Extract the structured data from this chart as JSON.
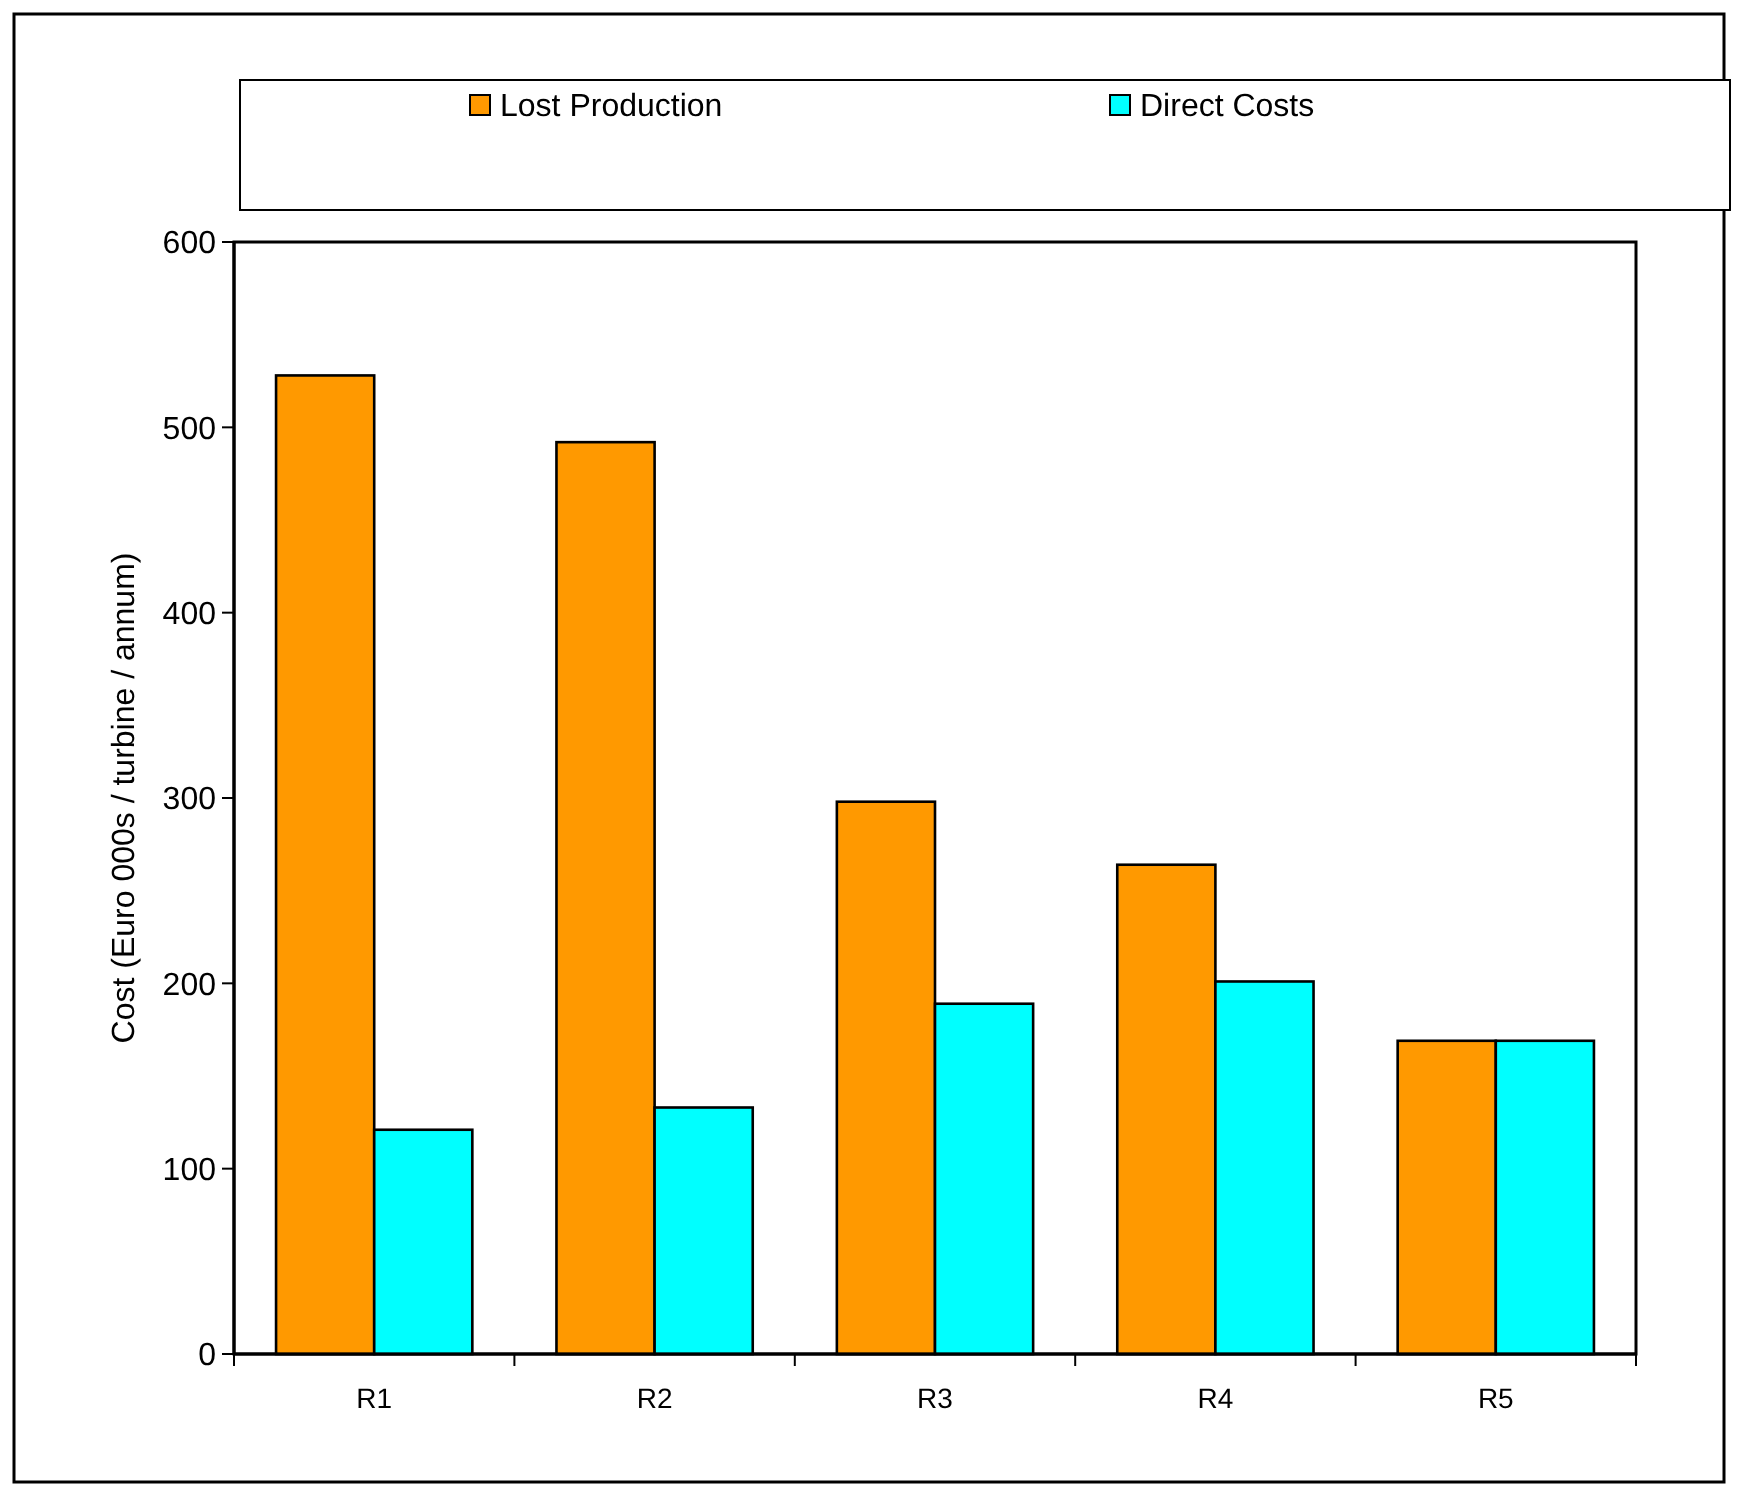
{
  "chart_data": {
    "type": "bar",
    "ylabel": "Cost (Euro 000s / turbine / annum)",
    "categories": [
      "R1",
      "R2",
      "R3",
      "R4",
      "R5"
    ],
    "series": [
      {
        "name": "Lost Production",
        "color": "#ff9900",
        "values": [
          528,
          492,
          298,
          264,
          169
        ]
      },
      {
        "name": "Direct Costs",
        "color": "#00ffff",
        "values": [
          121,
          133,
          189,
          201,
          169
        ]
      }
    ],
    "ylim": [
      0,
      600
    ],
    "yticks": [
      0,
      100,
      200,
      300,
      400,
      500,
      600
    ],
    "grid": false,
    "legend": "top"
  }
}
